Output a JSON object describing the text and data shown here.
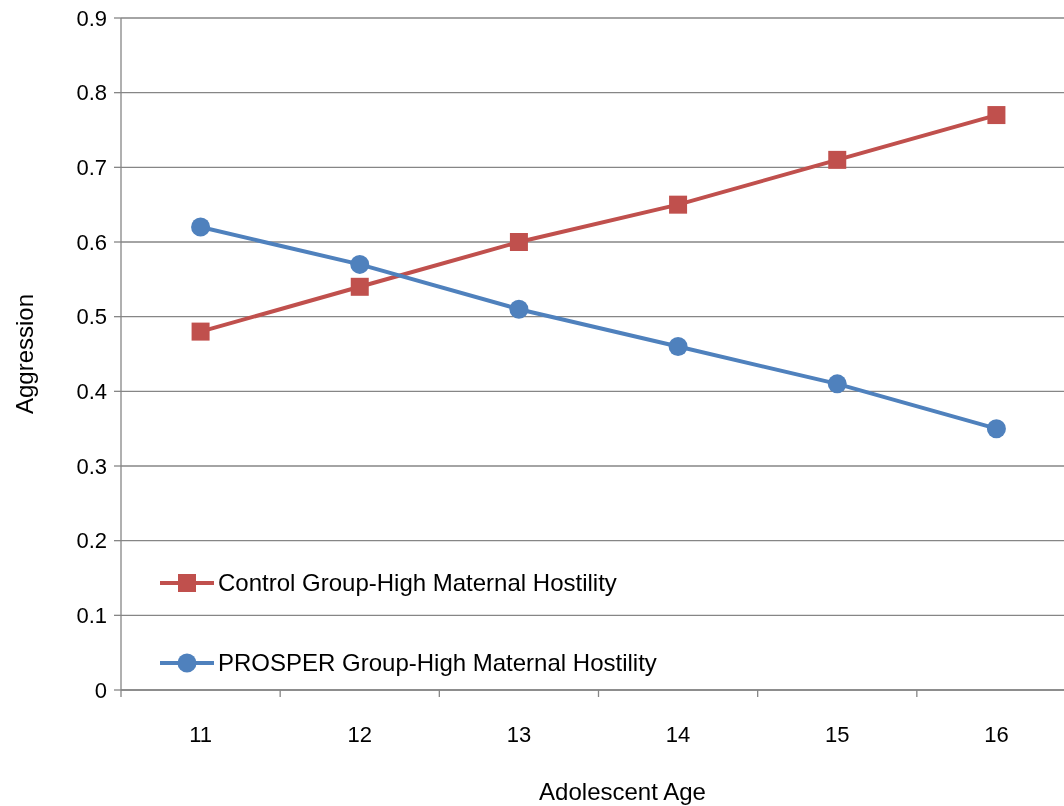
{
  "chart_data": {
    "type": "line",
    "xlabel": "Adolescent Age",
    "ylabel": "Aggression",
    "categories": [
      "11",
      "12",
      "13",
      "14",
      "15",
      "16"
    ],
    "series": [
      {
        "name": "Control Group-High Maternal Hostility",
        "color": "#c0504d",
        "marker": "square",
        "values": [
          0.48,
          0.54,
          0.6,
          0.65,
          0.71,
          0.77
        ]
      },
      {
        "name": "PROSPER Group-High Maternal Hostility",
        "color": "#4f81bd",
        "marker": "circle",
        "values": [
          0.62,
          0.57,
          0.51,
          0.46,
          0.41,
          0.35
        ]
      }
    ],
    "ylim": [
      0,
      0.9
    ],
    "yticks": [
      {
        "value": 0,
        "label": "0"
      },
      {
        "value": 0.1,
        "label": "0.1"
      },
      {
        "value": 0.2,
        "label": "0.2"
      },
      {
        "value": 0.3,
        "label": "0.3"
      },
      {
        "value": 0.4,
        "label": "0.4"
      },
      {
        "value": 0.5,
        "label": "0.5"
      },
      {
        "value": 0.6,
        "label": "0.6"
      },
      {
        "value": 0.7,
        "label": "0.7"
      },
      {
        "value": 0.8,
        "label": "0.8"
      },
      {
        "value": 0.9,
        "label": "0.9"
      }
    ],
    "grid": "y",
    "legend": "bottom left",
    "line_style": "solid"
  }
}
